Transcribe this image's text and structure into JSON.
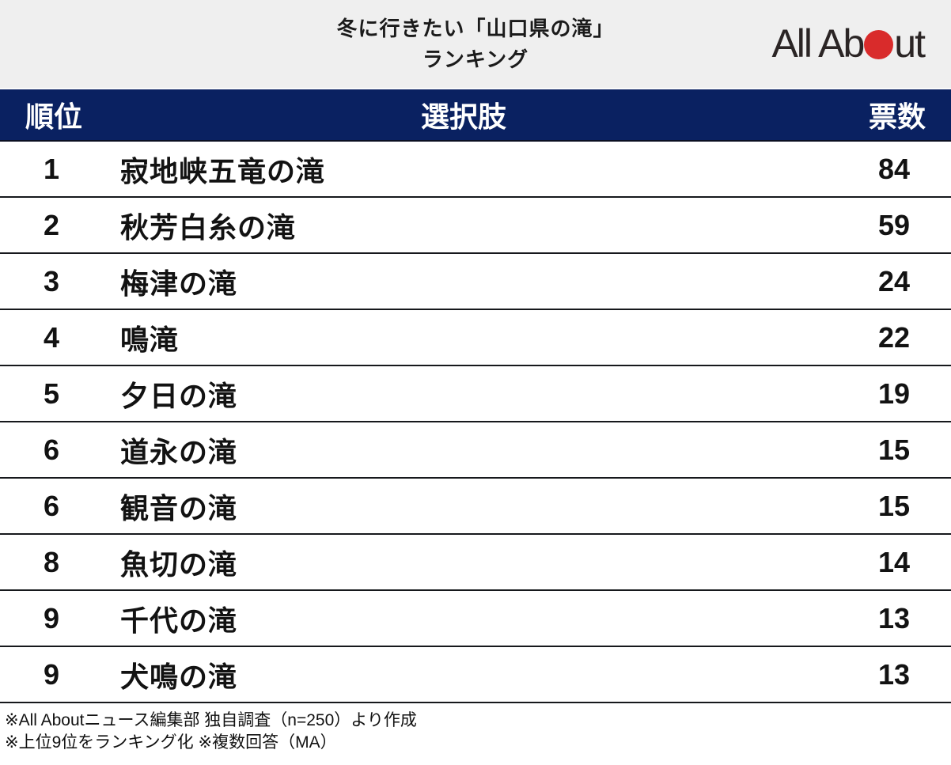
{
  "header": {
    "title_line1": "冬に行きたい「山口県の滝」",
    "title_line2": "ランキング",
    "logo": {
      "part1": "All Ab",
      "part2": "ut"
    }
  },
  "table": {
    "columns": {
      "rank": "順位",
      "choice": "選択肢",
      "votes": "票数"
    },
    "rows": [
      {
        "rank": "1",
        "name": "寂地峡五竜の滝",
        "votes": "84"
      },
      {
        "rank": "2",
        "name": "秋芳白糸の滝",
        "votes": "59"
      },
      {
        "rank": "3",
        "name": "梅津の滝",
        "votes": "24"
      },
      {
        "rank": "4",
        "name": "鳴滝",
        "votes": "22"
      },
      {
        "rank": "5",
        "name": "夕日の滝",
        "votes": "19"
      },
      {
        "rank": "6",
        "name": "道永の滝",
        "votes": "15"
      },
      {
        "rank": "6",
        "name": "観音の滝",
        "votes": "15"
      },
      {
        "rank": "8",
        "name": "魚切の滝",
        "votes": "14"
      },
      {
        "rank": "9",
        "name": "千代の滝",
        "votes": "13"
      },
      {
        "rank": "9",
        "name": "犬鳴の滝",
        "votes": "13"
      }
    ]
  },
  "footer": {
    "line1": "※All Aboutニュース編集部 独自調査（n=250）より作成",
    "line2": "※上位9位をランキング化 ※複数回答（MA）"
  },
  "colors": {
    "navy_header": "#0a2161",
    "title_background": "#efefef",
    "logo_red": "#d92b2b",
    "separator": "#16181c"
  },
  "chart_data": {
    "type": "table",
    "title": "冬に行きたい「山口県の滝」ランキング",
    "columns": [
      "順位",
      "選択肢",
      "票数"
    ],
    "categories": [
      "寂地峡五竜の滝",
      "秋芳白糸の滝",
      "梅津の滝",
      "鳴滝",
      "夕日の滝",
      "道永の滝",
      "観音の滝",
      "魚切の滝",
      "千代の滝",
      "犬鳴の滝"
    ],
    "ranks": [
      1,
      2,
      3,
      4,
      5,
      6,
      6,
      8,
      9,
      9
    ],
    "values": [
      84,
      59,
      24,
      22,
      19,
      15,
      15,
      14,
      13,
      13
    ],
    "sample_size": 250,
    "notes": [
      "※All Aboutニュース編集部 独自調査（n=250）より作成",
      "※上位9位をランキング化 ※複数回答（MA）"
    ]
  }
}
